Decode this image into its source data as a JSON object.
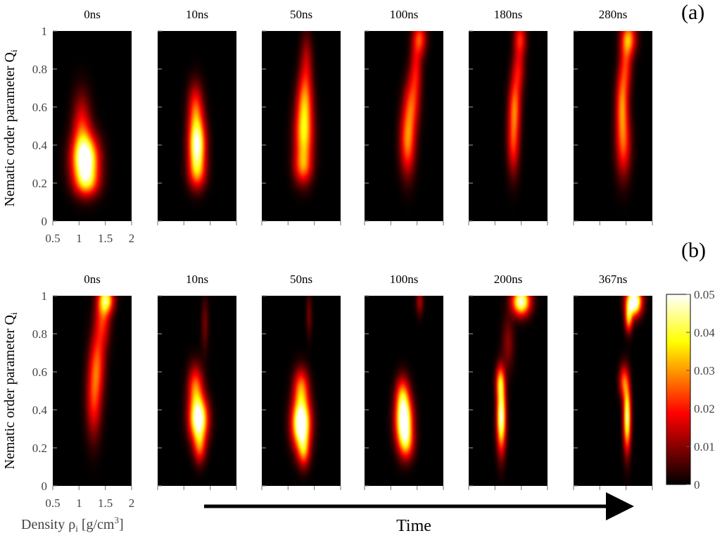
{
  "figure": {
    "panels": [
      {
        "label": "(a)",
        "times": [
          "0ns",
          "10ns",
          "50ns",
          "100ns",
          "180ns",
          "280ns"
        ],
        "ylabel": "Nematic order parameter Q",
        "ylabel_sub": "i",
        "yticks": [
          "0",
          "0.2",
          "0.4",
          "0.6",
          "0.8",
          "1"
        ],
        "xticks": [
          "0.5",
          "1",
          "1.5",
          "2"
        ]
      },
      {
        "label": "(b)",
        "times": [
          "0ns",
          "10ns",
          "50ns",
          "100ns",
          "200ns",
          "367ns"
        ],
        "ylabel": "Nematic order parameter Q",
        "ylabel_sub": "i",
        "yticks": [
          "0",
          "0.2",
          "0.4",
          "0.6",
          "0.8",
          "1"
        ],
        "xticks": [
          "0.5",
          "1",
          "1.5",
          "2"
        ]
      }
    ],
    "xlabel": "Density ρ",
    "xlabel_sub": "i",
    "xlabel_unit": "[g/cm",
    "xlabel_unit_sup": "3",
    "xlabel_unit_end": "]",
    "arrow_label": "Time",
    "colorbar": {
      "ticks": [
        "0",
        "0.01",
        "0.02",
        "0.03",
        "0.04",
        "0.05"
      ],
      "min": 0,
      "max": 0.05,
      "colormap": "hot"
    }
  },
  "chart_data": [
    {
      "type": "heatmap",
      "panel": "(a)",
      "xlim": [
        0.5,
        2
      ],
      "ylim": [
        0,
        1
      ],
      "xlabel": "Density ρi [g/cm3]",
      "ylabel": "Nematic order parameter Qi",
      "colormap": "hot",
      "clim": [
        0,
        0.05
      ],
      "frames": [
        {
          "time": "0ns",
          "blobs": [
            {
              "x": 1.12,
              "y": 0.32,
              "sx": 0.17,
              "sy": 0.09,
              "a": 0.055
            },
            {
              "x": 1.05,
              "y": 0.5,
              "sx": 0.12,
              "sy": 0.12,
              "a": 0.018
            },
            {
              "x": 1.15,
              "y": 0.2,
              "sx": 0.16,
              "sy": 0.05,
              "a": 0.02
            }
          ]
        },
        {
          "time": "10ns",
          "blobs": [
            {
              "x": 1.25,
              "y": 0.4,
              "sx": 0.11,
              "sy": 0.1,
              "a": 0.05
            },
            {
              "x": 1.22,
              "y": 0.6,
              "sx": 0.1,
              "sy": 0.09,
              "a": 0.02
            },
            {
              "x": 1.25,
              "y": 0.25,
              "sx": 0.12,
              "sy": 0.06,
              "a": 0.018
            }
          ]
        },
        {
          "time": "50ns",
          "blobs": [
            {
              "x": 1.3,
              "y": 0.45,
              "sx": 0.12,
              "sy": 0.12,
              "a": 0.035
            },
            {
              "x": 1.32,
              "y": 0.65,
              "sx": 0.1,
              "sy": 0.1,
              "a": 0.022
            },
            {
              "x": 1.35,
              "y": 0.85,
              "sx": 0.08,
              "sy": 0.1,
              "a": 0.012
            },
            {
              "x": 1.28,
              "y": 0.28,
              "sx": 0.12,
              "sy": 0.06,
              "a": 0.018
            }
          ]
        },
        {
          "time": "100ns",
          "blobs": [
            {
              "x": 1.32,
              "y": 0.42,
              "sx": 0.1,
              "sy": 0.12,
              "a": 0.028
            },
            {
              "x": 1.4,
              "y": 0.62,
              "sx": 0.1,
              "sy": 0.1,
              "a": 0.02
            },
            {
              "x": 1.48,
              "y": 0.8,
              "sx": 0.08,
              "sy": 0.1,
              "a": 0.016
            },
            {
              "x": 1.55,
              "y": 0.96,
              "sx": 0.09,
              "sy": 0.06,
              "a": 0.022
            }
          ]
        },
        {
          "time": "180ns",
          "blobs": [
            {
              "x": 1.35,
              "y": 0.42,
              "sx": 0.08,
              "sy": 0.12,
              "a": 0.022
            },
            {
              "x": 1.38,
              "y": 0.62,
              "sx": 0.08,
              "sy": 0.1,
              "a": 0.022
            },
            {
              "x": 1.45,
              "y": 0.8,
              "sx": 0.08,
              "sy": 0.08,
              "a": 0.016
            },
            {
              "x": 1.48,
              "y": 0.96,
              "sx": 0.08,
              "sy": 0.06,
              "a": 0.02
            }
          ]
        },
        {
          "time": "280ns",
          "blobs": [
            {
              "x": 1.45,
              "y": 0.4,
              "sx": 0.1,
              "sy": 0.12,
              "a": 0.022
            },
            {
              "x": 1.42,
              "y": 0.62,
              "sx": 0.08,
              "sy": 0.12,
              "a": 0.025
            },
            {
              "x": 1.5,
              "y": 0.82,
              "sx": 0.08,
              "sy": 0.1,
              "a": 0.018
            },
            {
              "x": 1.55,
              "y": 0.96,
              "sx": 0.1,
              "sy": 0.06,
              "a": 0.028
            }
          ]
        }
      ]
    },
    {
      "type": "heatmap",
      "panel": "(b)",
      "xlim": [
        0.5,
        2
      ],
      "ylim": [
        0,
        1
      ],
      "xlabel": "Density ρi [g/cm3]",
      "ylabel": "Nematic order parameter Qi",
      "colormap": "hot",
      "clim": [
        0,
        0.05
      ],
      "frames": [
        {
          "time": "0ns",
          "blobs": [
            {
              "x": 1.28,
              "y": 0.45,
              "sx": 0.1,
              "sy": 0.14,
              "a": 0.02
            },
            {
              "x": 1.35,
              "y": 0.65,
              "sx": 0.1,
              "sy": 0.12,
              "a": 0.02
            },
            {
              "x": 1.45,
              "y": 0.88,
              "sx": 0.1,
              "sy": 0.1,
              "a": 0.02
            },
            {
              "x": 1.52,
              "y": 0.98,
              "sx": 0.1,
              "sy": 0.05,
              "a": 0.035
            }
          ]
        },
        {
          "time": "10ns",
          "blobs": [
            {
              "x": 1.28,
              "y": 0.35,
              "sx": 0.12,
              "sy": 0.08,
              "a": 0.055
            },
            {
              "x": 1.22,
              "y": 0.52,
              "sx": 0.1,
              "sy": 0.08,
              "a": 0.025
            },
            {
              "x": 1.3,
              "y": 0.2,
              "sx": 0.08,
              "sy": 0.06,
              "a": 0.02
            },
            {
              "x": 1.4,
              "y": 0.85,
              "sx": 0.05,
              "sy": 0.1,
              "a": 0.008
            }
          ]
        },
        {
          "time": "50ns",
          "blobs": [
            {
              "x": 1.25,
              "y": 0.33,
              "sx": 0.12,
              "sy": 0.09,
              "a": 0.06
            },
            {
              "x": 1.25,
              "y": 0.52,
              "sx": 0.1,
              "sy": 0.07,
              "a": 0.025
            },
            {
              "x": 1.3,
              "y": 0.18,
              "sx": 0.08,
              "sy": 0.06,
              "a": 0.022
            },
            {
              "x": 1.4,
              "y": 0.9,
              "sx": 0.04,
              "sy": 0.08,
              "a": 0.008
            }
          ]
        },
        {
          "time": "100ns",
          "blobs": [
            {
              "x": 1.25,
              "y": 0.34,
              "sx": 0.11,
              "sy": 0.09,
              "a": 0.055
            },
            {
              "x": 1.22,
              "y": 0.48,
              "sx": 0.09,
              "sy": 0.07,
              "a": 0.022
            },
            {
              "x": 1.3,
              "y": 0.22,
              "sx": 0.1,
              "sy": 0.06,
              "a": 0.02
            },
            {
              "x": 1.55,
              "y": 0.97,
              "sx": 0.05,
              "sy": 0.05,
              "a": 0.012
            }
          ]
        },
        {
          "time": "200ns",
          "blobs": [
            {
              "x": 1.12,
              "y": 0.36,
              "sx": 0.06,
              "sy": 0.12,
              "a": 0.05
            },
            {
              "x": 1.1,
              "y": 0.55,
              "sx": 0.06,
              "sy": 0.06,
              "a": 0.025
            },
            {
              "x": 1.5,
              "y": 0.97,
              "sx": 0.12,
              "sy": 0.05,
              "a": 0.05
            },
            {
              "x": 1.25,
              "y": 0.75,
              "sx": 0.08,
              "sy": 0.1,
              "a": 0.01
            }
          ]
        },
        {
          "time": "367ns",
          "blobs": [
            {
              "x": 1.52,
              "y": 0.36,
              "sx": 0.05,
              "sy": 0.12,
              "a": 0.045
            },
            {
              "x": 1.45,
              "y": 0.55,
              "sx": 0.06,
              "sy": 0.06,
              "a": 0.022
            },
            {
              "x": 1.65,
              "y": 0.97,
              "sx": 0.1,
              "sy": 0.05,
              "a": 0.06
            },
            {
              "x": 1.55,
              "y": 0.88,
              "sx": 0.05,
              "sy": 0.05,
              "a": 0.03
            }
          ]
        }
      ]
    }
  ]
}
